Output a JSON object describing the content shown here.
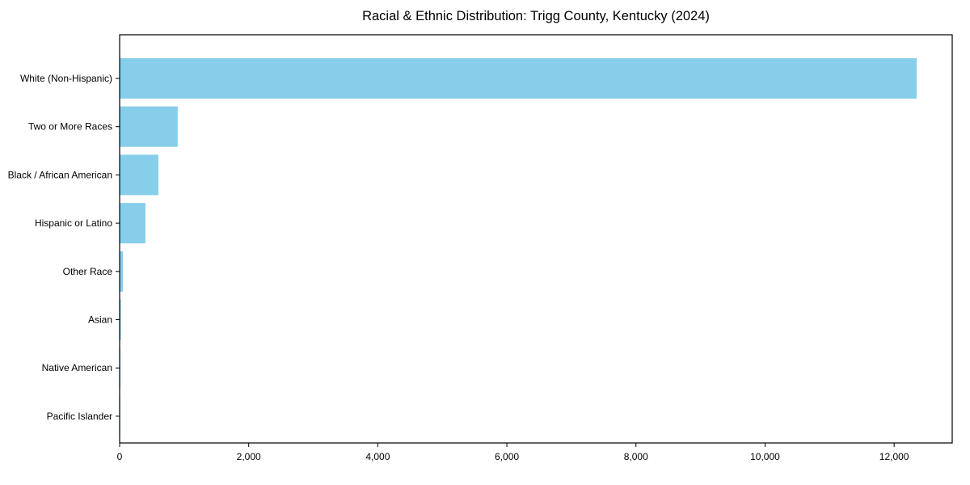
{
  "chart_data": {
    "type": "bar",
    "orientation": "horizontal",
    "title": "Racial & Ethnic Distribution: Trigg County, Kentucky (2024)",
    "categories": [
      "White (Non-Hispanic)",
      "Two or More Races",
      "Black / African American",
      "Hispanic or Latino",
      "Other Race",
      "Asian",
      "Native American",
      "Pacific Islander"
    ],
    "values": [
      12350,
      900,
      600,
      400,
      50,
      20,
      12,
      5
    ],
    "xlabel": "",
    "ylabel": "",
    "xlim": [
      0,
      12900
    ],
    "xticks": [
      0,
      2000,
      4000,
      6000,
      8000,
      10000,
      12000
    ],
    "xtick_labels": [
      "0",
      "2,000",
      "4,000",
      "6,000",
      "8,000",
      "10,000",
      "12,000"
    ],
    "bar_color": "#87CEEB",
    "axis_color": "#000000",
    "background": "#ffffff",
    "grid": false,
    "legend": "none"
  }
}
